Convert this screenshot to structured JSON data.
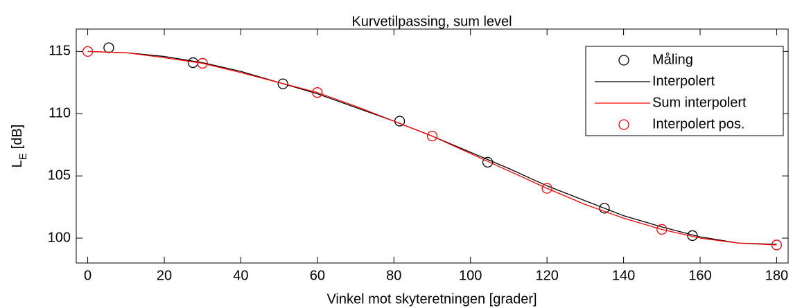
{
  "chart_data": {
    "type": "line",
    "title": "Kurvetilpassing, sum level",
    "xlabel": "Vinkel mot skyteretningen [grader]",
    "ylabel": [
      "L",
      "E",
      "[dB]"
    ],
    "xlim": [
      -3,
      183
    ],
    "ylim": [
      98,
      116.8
    ],
    "xticks": [
      0,
      20,
      40,
      60,
      80,
      100,
      120,
      140,
      160,
      180
    ],
    "yticks": [
      100,
      105,
      110,
      115
    ],
    "grid": false,
    "legend": "upper right",
    "series": [
      {
        "name": "Måling",
        "color": "#000000",
        "marker": "circle",
        "x": [
          5.5,
          27.5,
          51,
          81.5,
          104.5,
          135,
          158
        ],
        "values": [
          115.3,
          114.1,
          112.4,
          109.4,
          106.1,
          102.4,
          100.2
        ]
      },
      {
        "name": "Interpolert",
        "color": "#000000",
        "marker": "none",
        "x": [
          0,
          10,
          20,
          30,
          40,
          50,
          60,
          70,
          80,
          90,
          100,
          110,
          120,
          130,
          140,
          150,
          160,
          170,
          180
        ],
        "values": [
          115.0,
          114.9,
          114.6,
          114.1,
          113.4,
          112.5,
          111.6,
          110.5,
          109.4,
          108.2,
          106.9,
          105.6,
          104.2,
          103.0,
          101.8,
          100.9,
          100.1,
          99.6,
          99.5
        ]
      },
      {
        "name": "Sum interpolert",
        "color": "#ff0000",
        "marker": "none",
        "x": [
          0,
          10,
          20,
          30,
          40,
          50,
          60,
          70,
          80,
          90,
          100,
          110,
          120,
          130,
          140,
          150,
          160,
          170,
          180
        ],
        "values": [
          115.0,
          114.9,
          114.5,
          114.05,
          113.3,
          112.5,
          111.7,
          110.6,
          109.4,
          108.2,
          106.8,
          105.4,
          104.0,
          102.7,
          101.6,
          100.7,
          100.0,
          99.6,
          99.45
        ]
      },
      {
        "name": "Interpolert pos.",
        "color": "#ff0000",
        "marker": "circle",
        "x": [
          0,
          30,
          60,
          90,
          120,
          150,
          180
        ],
        "values": [
          115.0,
          114.05,
          111.7,
          108.2,
          104.0,
          100.7,
          99.45
        ]
      }
    ]
  }
}
